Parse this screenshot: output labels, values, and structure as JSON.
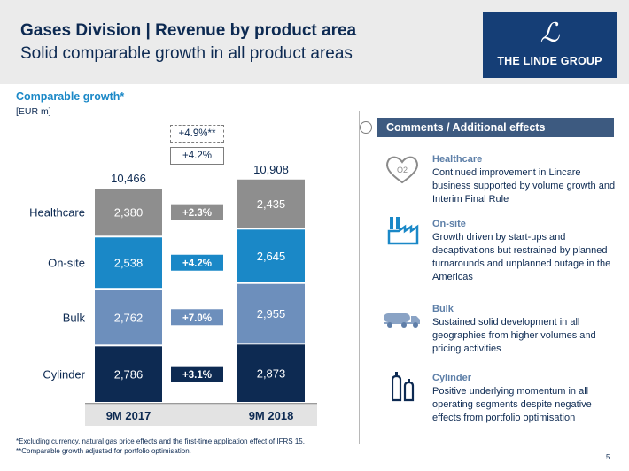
{
  "header": {
    "title": "Gases Division | Revenue by product area",
    "subtitle": "Solid comparable growth in all product areas",
    "logo_text": "THE LINDE GROUP"
  },
  "chart_heading": "Comparable growth*",
  "unit": "[EUR m]",
  "growth_total": "+4.9%**",
  "growth_comparable": "+4.2%",
  "chart_data": {
    "type": "bar",
    "stacked": true,
    "categories": [
      "9M 2017",
      "9M 2018"
    ],
    "totals": [
      "10,466",
      "10,908"
    ],
    "series": [
      {
        "name": "Cylinder",
        "values": [
          2786,
          2873
        ],
        "labels": [
          "2,786",
          "2,873"
        ],
        "growth": "+3.1%",
        "color": "#0d2a52"
      },
      {
        "name": "Bulk",
        "values": [
          2762,
          2955
        ],
        "labels": [
          "2,762",
          "2,955"
        ],
        "growth": "+7.0%",
        "color": "#6d8fbc"
      },
      {
        "name": "On-site",
        "values": [
          2538,
          2645
        ],
        "labels": [
          "2,538",
          "2,645"
        ],
        "growth": "+4.2%",
        "color": "#1a88c7"
      },
      {
        "name": "Healthcare",
        "values": [
          2380,
          2435
        ],
        "labels": [
          "2,380",
          "2,435"
        ],
        "growth": "+2.3%",
        "color": "#8e8e8e"
      }
    ]
  },
  "comments": {
    "title": "Comments / Additional effects",
    "items": [
      {
        "heading": "Healthcare",
        "text": "Continued improvement in Lincare business supported by volume growth and Interim Final Rule",
        "icon_label": "O2"
      },
      {
        "heading": "On-site",
        "text": "Growth driven by start-ups and decaptivations but restrained by planned turnarounds and unplanned outage in the Americas"
      },
      {
        "heading": "Bulk",
        "text": "Sustained solid development in all geographies from higher volumes and pricing activities"
      },
      {
        "heading": "Cylinder",
        "text": "Positive underlying momentum in all operating segments despite negative effects from portfolio optimisation"
      }
    ]
  },
  "footnotes": [
    "*Excluding currency, natural gas price effects and the first-time application effect of IFRS 15.",
    "**Comparable growth adjusted for portfolio optimisation."
  ],
  "page_number": "5"
}
